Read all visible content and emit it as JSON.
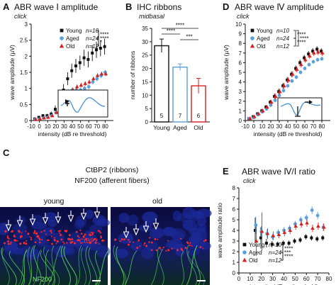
{
  "panels": {
    "A": {
      "letter": "A",
      "title": "ABR wave Ⅰ amplitude",
      "subtitle": "click"
    },
    "B": {
      "letter": "B",
      "title": "IHC ribbons",
      "subtitle": "midbasal"
    },
    "C": {
      "letter": "C",
      "title_line1": "CtBP2 (ribbons)",
      "title_line2": "NF200 (afferent fibers)",
      "label_young": "young",
      "label_old": "old",
      "stain_red": "CtBP2",
      "stain_green": "NF200"
    },
    "D": {
      "letter": "D",
      "title": "ABR wave Ⅳ amplitude",
      "subtitle": "click"
    },
    "E": {
      "letter": "E",
      "title": "ABR wave Ⅳ/Ⅰ ratio",
      "subtitle": "click"
    }
  },
  "colors": {
    "young": "#111111",
    "aged": "#5aa0dc",
    "old": "#d62020",
    "trace": "#4a90d0",
    "inset_marker": "#111111"
  },
  "chart_data": [
    {
      "id": "A",
      "type": "scatter",
      "title": "ABR wave Ⅰ amplitude",
      "subtitle": "click",
      "xlabel": "intensity (dB re threshold)",
      "ylabel": "wave amplitude (µV)",
      "xlim": [
        -10,
        90
      ],
      "ylim": [
        0,
        3
      ],
      "xticks": [
        -10,
        0,
        10,
        20,
        30,
        40,
        50,
        60,
        70,
        80
      ],
      "yticks": [
        0,
        0.5,
        1,
        1.5,
        2,
        2.5,
        3
      ],
      "yticklabels": [
        "0",
        "0.5",
        "1",
        "1.5",
        "2",
        "2.5",
        "3"
      ],
      "series": [
        {
          "name": "Young",
          "n": "n=10",
          "marker": "square",
          "color": "#111111",
          "x": [
            -5,
            0,
            5,
            10,
            15,
            20,
            25,
            30,
            35,
            40,
            45,
            50,
            55,
            60,
            65,
            70,
            75,
            80
          ],
          "y": [
            0.05,
            0.1,
            0.15,
            0.15,
            0.2,
            0.35,
            0.7,
            0.95,
            1.3,
            1.55,
            1.7,
            1.8,
            1.95,
            1.9,
            2.1,
            2.2,
            2.25,
            2.3
          ],
          "err": [
            0.03,
            0.03,
            0.05,
            0.06,
            0.08,
            0.12,
            0.15,
            0.18,
            0.2,
            0.22,
            0.22,
            0.22,
            0.25,
            0.25,
            0.25,
            0.25,
            0.25,
            0.25
          ]
        },
        {
          "name": "Aged",
          "n": "n=24",
          "marker": "circle",
          "color": "#5aa0dc",
          "x": [
            -5,
            0,
            5,
            10,
            15,
            20,
            25,
            30,
            35,
            40,
            45,
            50,
            55,
            60,
            65,
            70,
            75,
            80
          ],
          "y": [
            0.03,
            0.05,
            0.08,
            0.1,
            0.15,
            0.25,
            0.45,
            0.75,
            0.9,
            0.95,
            0.95,
            0.95,
            1.0,
            1.05,
            1.2,
            1.3,
            1.4,
            1.5
          ],
          "err": [
            0.02,
            0.02,
            0.03,
            0.04,
            0.05,
            0.06,
            0.07,
            0.08,
            0.08,
            0.08,
            0.08,
            0.08,
            0.08,
            0.08,
            0.08,
            0.08,
            0.08,
            0.08
          ]
        },
        {
          "name": "Old",
          "n": "n=12",
          "marker": "triangle",
          "color": "#d62020",
          "x": [
            -5,
            0,
            5,
            10,
            15,
            20,
            25,
            30,
            35,
            40,
            45,
            50,
            55,
            60,
            65,
            70,
            75,
            80
          ],
          "y": [
            0.03,
            0.05,
            0.08,
            0.1,
            0.15,
            0.25,
            0.45,
            0.65,
            0.8,
            0.95,
            1.05,
            1.1,
            1.15,
            1.2,
            1.3,
            1.4,
            1.45,
            1.45
          ],
          "err": [
            0.02,
            0.02,
            0.03,
            0.04,
            0.05,
            0.06,
            0.07,
            0.07,
            0.07,
            0.07,
            0.07,
            0.07,
            0.07,
            0.07,
            0.07,
            0.07,
            0.07,
            0.07
          ]
        }
      ],
      "significance": [
        "****",
        "****",
        "*"
      ]
    },
    {
      "id": "B",
      "type": "bar",
      "title": "IHC ribbons",
      "subtitle": "midbasal",
      "ylabel": "number of ribbons",
      "ylim": [
        0,
        35
      ],
      "yticks": [
        0,
        5,
        10,
        15,
        20,
        25,
        30,
        35
      ],
      "categories": [
        "Young",
        "Aged",
        "Old"
      ],
      "values": [
        28.5,
        20.5,
        13.5
      ],
      "err": [
        2.5,
        1.2,
        2.8
      ],
      "counts": [
        "5",
        "7",
        "6"
      ],
      "colors": [
        "#111111",
        "#5aa0dc",
        "#d62020"
      ],
      "significance": [
        "****",
        "****",
        "***"
      ]
    },
    {
      "id": "D",
      "type": "scatter",
      "title": "ABR wave Ⅳ amplitude",
      "subtitle": "click",
      "xlabel": "intensity (dB re threshold)",
      "ylabel": "wave amplitude (µV)",
      "xlim": [
        -10,
        90
      ],
      "ylim": [
        0,
        10
      ],
      "xticks": [
        -10,
        0,
        10,
        20,
        30,
        40,
        50,
        60,
        70,
        80
      ],
      "yticks": [
        0,
        1,
        2,
        3,
        4,
        5,
        6,
        7,
        8,
        9,
        10
      ],
      "series": [
        {
          "name": "Young",
          "n": "n=10",
          "marker": "square",
          "color": "#111111",
          "x": [
            -5,
            0,
            5,
            10,
            15,
            20,
            25,
            30,
            35,
            40,
            45,
            50,
            55,
            60,
            65,
            70,
            75,
            80
          ],
          "y": [
            0.2,
            0.4,
            0.7,
            1.0,
            1.4,
            1.9,
            2.5,
            3.0,
            3.6,
            4.2,
            4.8,
            5.4,
            6.0,
            6.5,
            6.9,
            7.2,
            7.4,
            7.2
          ],
          "err": [
            0.1,
            0.1,
            0.15,
            0.2,
            0.2,
            0.25,
            0.3,
            0.3,
            0.3,
            0.3,
            0.3,
            0.3,
            0.3,
            0.3,
            0.3,
            0.3,
            0.3,
            0.3
          ]
        },
        {
          "name": "Aged",
          "n": "n=24",
          "marker": "circle",
          "color": "#5aa0dc",
          "x": [
            -5,
            0,
            5,
            10,
            15,
            20,
            25,
            30,
            35,
            40,
            45,
            50,
            55,
            60,
            65,
            70,
            75,
            80
          ],
          "y": [
            0.2,
            0.3,
            0.6,
            0.9,
            1.2,
            1.6,
            2.1,
            2.6,
            3.1,
            3.6,
            4.1,
            4.5,
            5.0,
            5.4,
            5.8,
            6.1,
            6.3,
            6.4
          ],
          "err": [
            0.1,
            0.1,
            0.1,
            0.15,
            0.15,
            0.2,
            0.2,
            0.2,
            0.2,
            0.2,
            0.2,
            0.2,
            0.2,
            0.2,
            0.2,
            0.2,
            0.2,
            0.2
          ]
        },
        {
          "name": "Old",
          "n": "n=12",
          "marker": "triangle",
          "color": "#d62020",
          "x": [
            -5,
            0,
            5,
            10,
            15,
            20,
            25,
            30,
            35,
            40,
            45,
            50,
            55,
            60,
            65,
            70,
            75,
            80
          ],
          "y": [
            0.2,
            0.4,
            0.7,
            1.0,
            1.4,
            1.9,
            2.5,
            3.0,
            3.6,
            4.2,
            4.8,
            5.3,
            5.8,
            6.3,
            6.7,
            7.0,
            7.1,
            7.0
          ],
          "err": [
            0.1,
            0.1,
            0.15,
            0.2,
            0.2,
            0.25,
            0.3,
            0.3,
            0.3,
            0.3,
            0.3,
            0.3,
            0.3,
            0.3,
            0.3,
            0.3,
            0.3,
            0.3
          ]
        }
      ],
      "significance": [
        "****",
        "****",
        "****"
      ]
    },
    {
      "id": "E",
      "type": "scatter",
      "title": "ABR wave Ⅳ/Ⅰ ratio",
      "subtitle": "click",
      "xlabel": "intensity (dB re threshold)",
      "ylabel": "wave amplitude ratio",
      "xlim": [
        0,
        80
      ],
      "ylim": [
        0,
        8
      ],
      "xticks": [
        0,
        10,
        20,
        30,
        40,
        50,
        60,
        70,
        80
      ],
      "yticks": [
        0,
        1,
        2,
        3,
        4,
        5,
        6,
        7,
        8
      ],
      "series": [
        {
          "name": "Young",
          "n": "n=10",
          "marker": "square",
          "color": "#111111",
          "x": [
            15,
            20,
            25,
            30,
            35,
            40,
            45,
            50,
            55,
            60,
            65,
            70,
            75
          ],
          "y": [
            4.0,
            3.3,
            2.8,
            2.7,
            2.7,
            2.8,
            2.8,
            3.0,
            3.1,
            3.4,
            3.3,
            3.2,
            3.3
          ],
          "err": [
            1.2,
            1.0,
            0.4,
            0.3,
            0.25,
            0.25,
            0.25,
            0.25,
            0.25,
            0.25,
            0.25,
            0.25,
            0.25
          ]
        },
        {
          "name": "Aged",
          "n": "n=24",
          "marker": "circle",
          "color": "#5aa0dc",
          "x": [
            15,
            20,
            25,
            30,
            35,
            40,
            45,
            50,
            55,
            60,
            65,
            70,
            75
          ],
          "y": [
            4.5,
            3.9,
            3.7,
            3.4,
            3.8,
            4.0,
            4.2,
            4.6,
            5.0,
            5.2,
            5.9,
            5.4,
            4.3
          ],
          "err": [
            0.8,
            0.5,
            0.4,
            0.3,
            0.3,
            0.3,
            0.3,
            0.3,
            0.3,
            0.3,
            0.35,
            0.35,
            0.35
          ]
        },
        {
          "name": "Old",
          "n": "n=12",
          "marker": "triangle",
          "color": "#d62020",
          "x": [
            15,
            20,
            25,
            30,
            35,
            40,
            45,
            50,
            55,
            60,
            65,
            70,
            75
          ],
          "y": [
            3.0,
            3.9,
            3.7,
            3.5,
            3.6,
            3.8,
            4.0,
            4.4,
            4.6,
            4.7,
            4.2,
            4.4,
            4.3
          ],
          "err": [
            1.4,
            1.8,
            0.5,
            0.4,
            0.35,
            0.35,
            0.35,
            0.35,
            0.35,
            0.35,
            0.35,
            0.35,
            0.35
          ]
        }
      ],
      "significance": [
        "****",
        "****",
        "***"
      ]
    }
  ]
}
